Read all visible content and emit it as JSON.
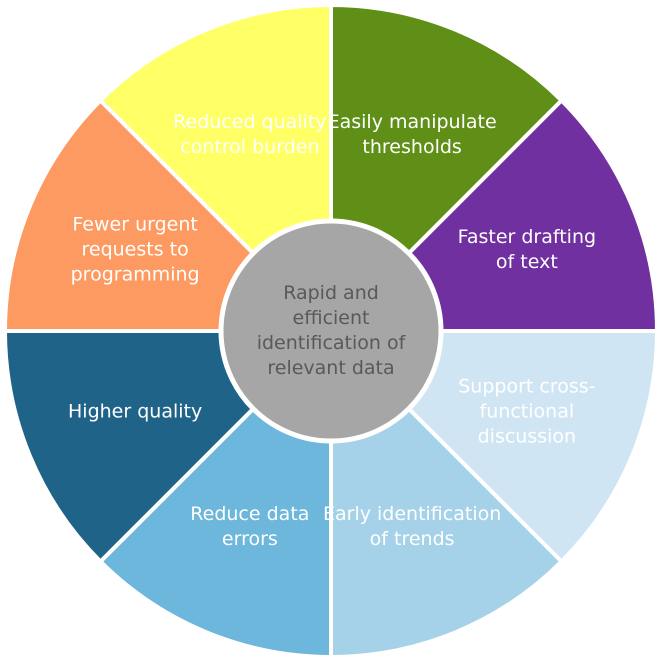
{
  "diagram": {
    "center": {
      "lines": [
        "Rapid and",
        "efficient",
        "identification of",
        "relevant data"
      ],
      "fill": "#a6a6a6",
      "text_color": "#595959"
    },
    "segments": [
      {
        "id": "easily-manipulate-thresholds",
        "lines": [
          "Easily manipulate",
          "thresholds"
        ],
        "fill": "#5f8f17",
        "text_color": "#ffffff"
      },
      {
        "id": "faster-drafting-of-text",
        "lines": [
          "Faster drafting",
          "of text"
        ],
        "fill": "#7030a0",
        "text_color": "#ffffff"
      },
      {
        "id": "support-cross-functional-discussion",
        "lines": [
          "Support cross-",
          "functional",
          "discussion"
        ],
        "fill": "#d0e5f3",
        "text_color": "#ffffff"
      },
      {
        "id": "early-identification-of-trends",
        "lines": [
          "Early identification",
          "of trends"
        ],
        "fill": "#a5d2e9",
        "text_color": "#ffffff"
      },
      {
        "id": "reduce-data-errors",
        "lines": [
          "Reduce data",
          "errors"
        ],
        "fill": "#6db6dc",
        "text_color": "#ffffff"
      },
      {
        "id": "higher-quality",
        "lines": [
          "Higher quality"
        ],
        "fill": "#1f6388",
        "text_color": "#ffffff"
      },
      {
        "id": "fewer-urgent-requests-to-programming",
        "lines": [
          "Fewer urgent",
          "requests to",
          "programming"
        ],
        "fill": "#fd9a62",
        "text_color": "#ffffff"
      },
      {
        "id": "reduced-quality-control-burden",
        "lines": [
          "Reduced quality",
          "control burden"
        ],
        "fill": "#ffff66",
        "text_color": "#ffffff"
      }
    ]
  }
}
